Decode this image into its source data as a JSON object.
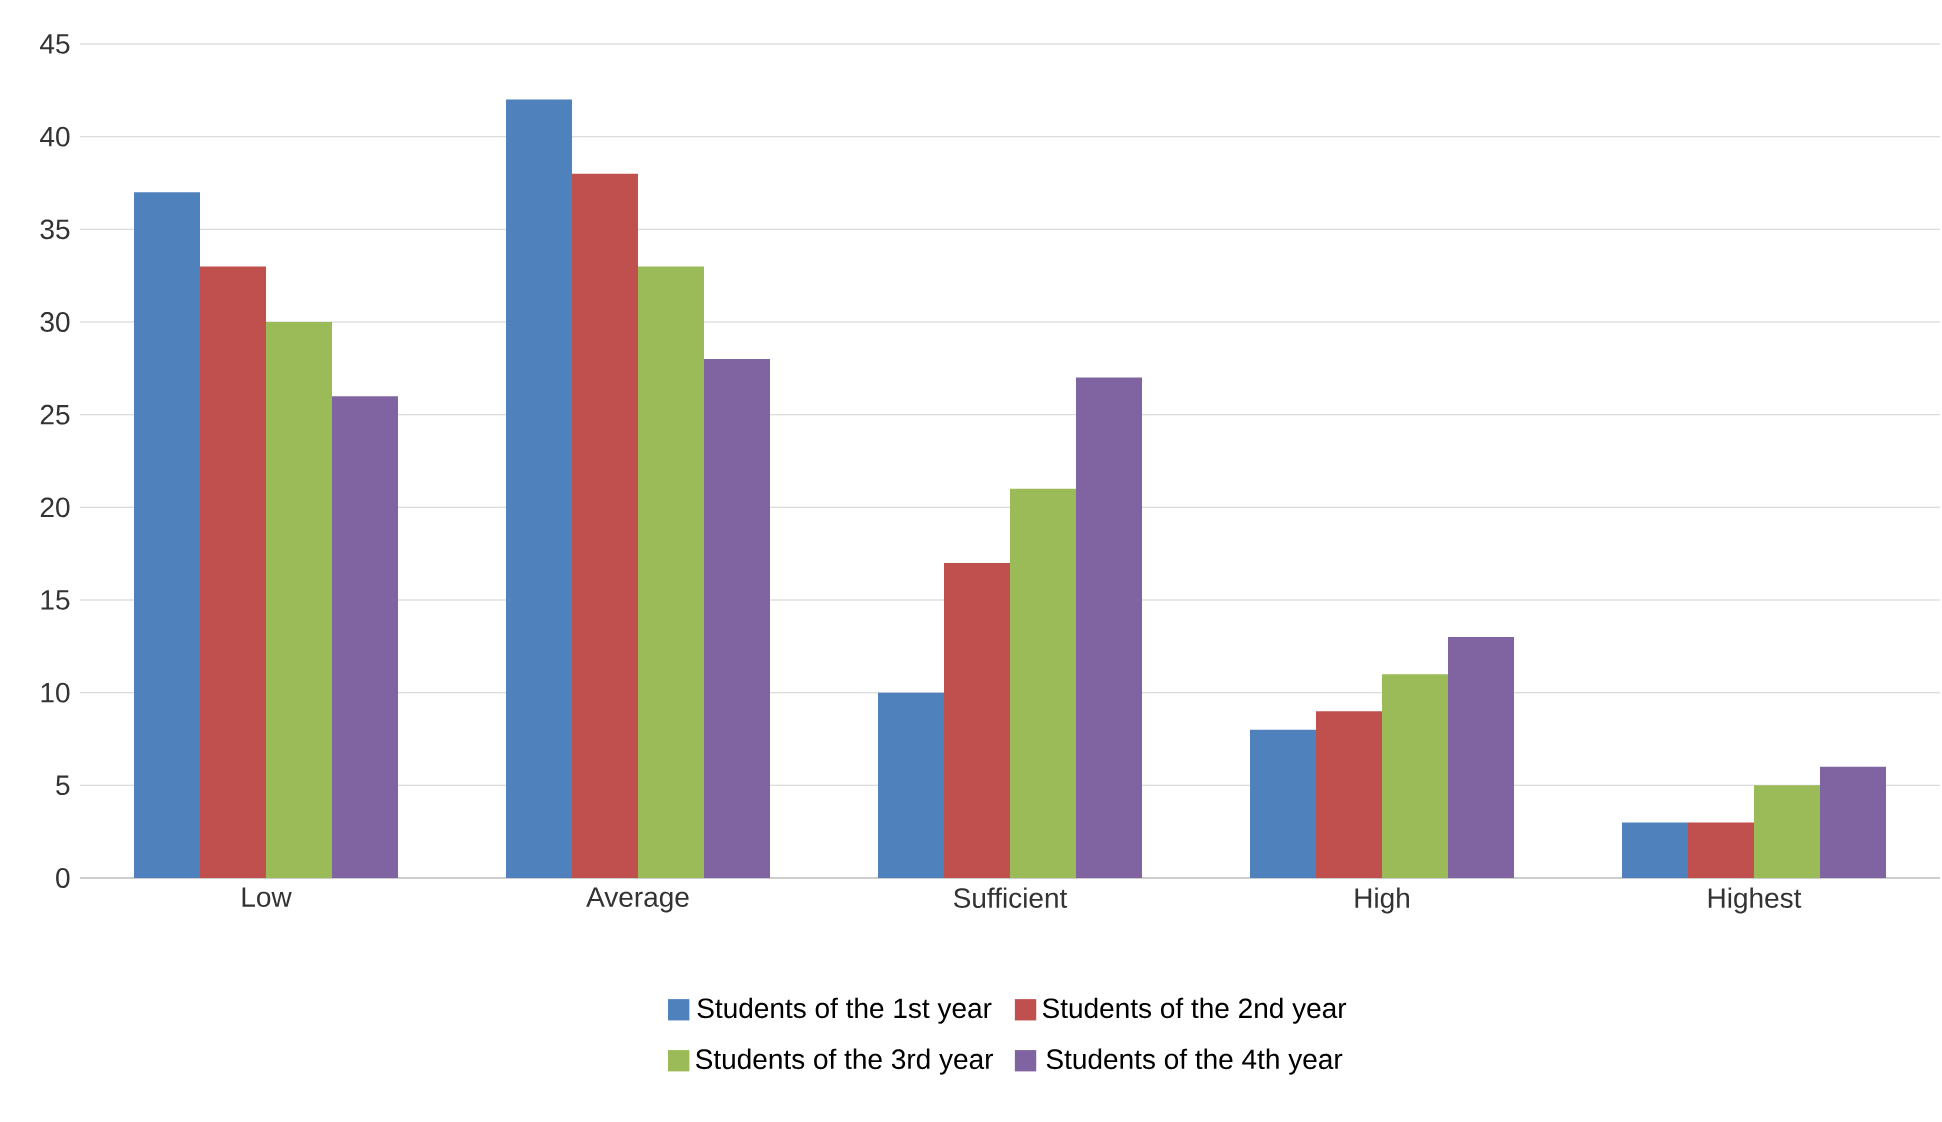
{
  "chart_data": {
    "type": "bar",
    "categories": [
      "Low",
      "Average",
      "Sufficient",
      "High",
      "Highest"
    ],
    "series": [
      {
        "name": "Students of the 1st year",
        "color": "#4f81bd",
        "values": [
          37,
          42,
          10,
          8,
          3
        ]
      },
      {
        "name": "Students of the 2nd year",
        "color": "#c0504d",
        "values": [
          33,
          38,
          17,
          9,
          3
        ]
      },
      {
        "name": "Students of the 3rd year",
        "color": "#9bbb59",
        "values": [
          30,
          33,
          21,
          11,
          5
        ]
      },
      {
        "name": "Students of the 4th year",
        "color": "#8064a2",
        "values": [
          26,
          28,
          27,
          13,
          6
        ]
      }
    ],
    "ylim": [
      0,
      45
    ],
    "yticks": [
      0,
      5,
      10,
      15,
      20,
      25,
      30,
      35,
      40,
      45
    ],
    "grid": "y",
    "legend": "bottom"
  }
}
